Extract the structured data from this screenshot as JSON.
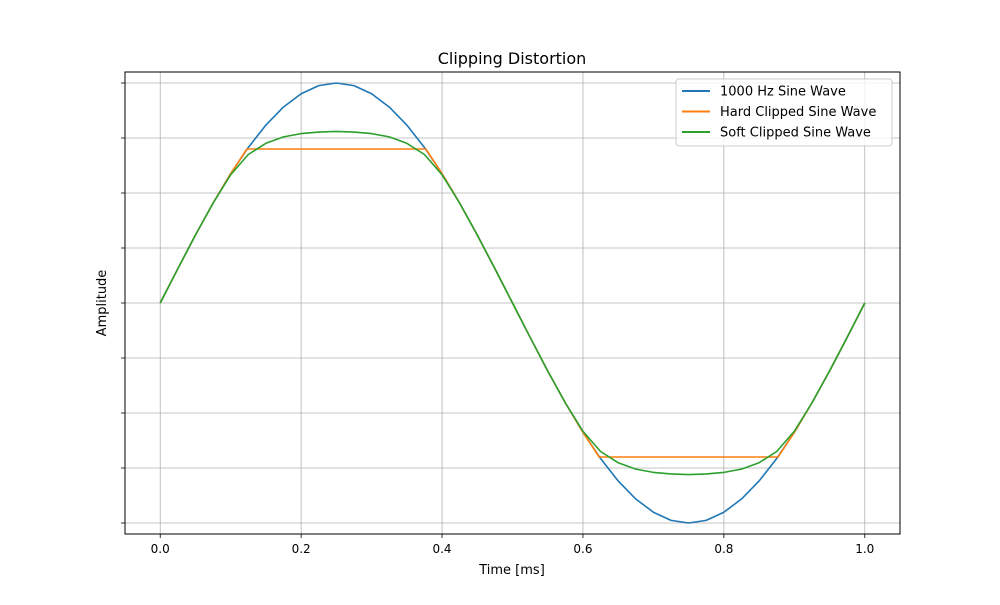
{
  "chart_data": {
    "type": "line",
    "title": "Clipping Distortion",
    "xlabel": "Time [ms]",
    "ylabel": "Amplitude",
    "xlim": [
      -0.05,
      1.05
    ],
    "ylim": [
      -1.05,
      1.05
    ],
    "x_ticks": [
      0.0,
      0.2,
      0.4,
      0.6,
      0.8,
      1.0
    ],
    "x_tick_labels": [
      "0.0",
      "0.2",
      "0.4",
      "0.6",
      "0.8",
      "1.0"
    ],
    "y_ticks": [
      -1.0,
      -0.75,
      -0.5,
      -0.25,
      0.0,
      0.25,
      0.5,
      0.75,
      1.0
    ],
    "y_tick_labels_visible": false,
    "grid": true,
    "legend_position": "top-right",
    "series": [
      {
        "name": "1000 Hz Sine Wave",
        "color": "#1f77b4",
        "x": [
          0.0,
          0.025,
          0.05,
          0.075,
          0.1,
          0.125,
          0.15,
          0.175,
          0.2,
          0.225,
          0.25,
          0.275,
          0.3,
          0.325,
          0.35,
          0.375,
          0.4,
          0.425,
          0.45,
          0.475,
          0.5,
          0.525,
          0.55,
          0.575,
          0.6,
          0.625,
          0.65,
          0.675,
          0.7,
          0.725,
          0.75,
          0.775,
          0.8,
          0.825,
          0.85,
          0.875,
          0.9,
          0.925,
          0.95,
          0.975,
          1.0
        ],
        "y": [
          0.0,
          0.156,
          0.309,
          0.454,
          0.588,
          0.707,
          0.809,
          0.891,
          0.951,
          0.988,
          1.0,
          0.988,
          0.951,
          0.891,
          0.809,
          0.707,
          0.588,
          0.454,
          0.309,
          0.156,
          0.0,
          -0.156,
          -0.309,
          -0.454,
          -0.588,
          -0.707,
          -0.809,
          -0.891,
          -0.951,
          -0.988,
          -1.0,
          -0.988,
          -0.951,
          -0.891,
          -0.809,
          -0.707,
          -0.588,
          -0.454,
          -0.309,
          -0.156,
          0.0
        ]
      },
      {
        "name": "Hard Clipped Sine Wave",
        "color": "#ff7f0e",
        "x": [
          0.0,
          0.025,
          0.05,
          0.075,
          0.1,
          0.123,
          0.125,
          0.15,
          0.175,
          0.2,
          0.225,
          0.25,
          0.275,
          0.3,
          0.325,
          0.35,
          0.375,
          0.377,
          0.4,
          0.425,
          0.45,
          0.475,
          0.5,
          0.525,
          0.55,
          0.575,
          0.6,
          0.623,
          0.625,
          0.65,
          0.675,
          0.7,
          0.725,
          0.75,
          0.775,
          0.8,
          0.825,
          0.85,
          0.875,
          0.877,
          0.9,
          0.925,
          0.95,
          0.975,
          1.0
        ],
        "y": [
          0.0,
          0.156,
          0.309,
          0.454,
          0.588,
          0.7,
          0.7,
          0.7,
          0.7,
          0.7,
          0.7,
          0.7,
          0.7,
          0.7,
          0.7,
          0.7,
          0.7,
          0.7,
          0.588,
          0.454,
          0.309,
          0.156,
          0.0,
          -0.156,
          -0.309,
          -0.454,
          -0.588,
          -0.7,
          -0.7,
          -0.7,
          -0.7,
          -0.7,
          -0.7,
          -0.7,
          -0.7,
          -0.7,
          -0.7,
          -0.7,
          -0.7,
          -0.7,
          -0.588,
          -0.454,
          -0.309,
          -0.156,
          0.0
        ]
      },
      {
        "name": "Soft Clipped Sine Wave",
        "color": "#2ca02c",
        "x": [
          0.0,
          0.025,
          0.05,
          0.075,
          0.1,
          0.125,
          0.15,
          0.175,
          0.2,
          0.225,
          0.25,
          0.275,
          0.3,
          0.325,
          0.35,
          0.375,
          0.4,
          0.425,
          0.45,
          0.475,
          0.5,
          0.525,
          0.55,
          0.575,
          0.6,
          0.625,
          0.65,
          0.675,
          0.7,
          0.725,
          0.75,
          0.775,
          0.8,
          0.825,
          0.85,
          0.875,
          0.9,
          0.925,
          0.95,
          0.975,
          1.0
        ],
        "y": [
          0.0,
          0.156,
          0.309,
          0.454,
          0.583,
          0.675,
          0.726,
          0.755,
          0.77,
          0.777,
          0.78,
          0.777,
          0.77,
          0.755,
          0.726,
          0.675,
          0.583,
          0.454,
          0.309,
          0.156,
          0.0,
          -0.156,
          -0.309,
          -0.454,
          -0.583,
          -0.675,
          -0.726,
          -0.755,
          -0.77,
          -0.777,
          -0.78,
          -0.777,
          -0.77,
          -0.755,
          -0.726,
          -0.675,
          -0.583,
          -0.454,
          -0.309,
          -0.156,
          0.0
        ]
      }
    ]
  }
}
